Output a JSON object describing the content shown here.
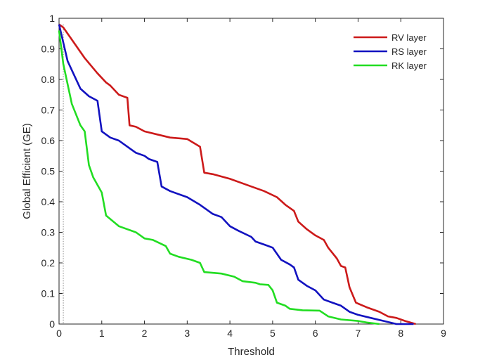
{
  "chart_data": {
    "type": "line",
    "title": "",
    "xlabel": "Threshold",
    "ylabel": "Global Efficient (GE)",
    "xlim": [
      0,
      9
    ],
    "ylim": [
      0,
      1
    ],
    "xticks": [
      "0",
      "1",
      "2",
      "3",
      "4",
      "5",
      "6",
      "7",
      "8",
      "9"
    ],
    "yticks": [
      "0",
      "0.1",
      "0.2",
      "0.3",
      "0.4",
      "0.5",
      "0.6",
      "0.7",
      "0.8",
      "0.9",
      "1"
    ],
    "grid": false,
    "legend_position": "top-right",
    "reference_line_x": 0.1,
    "series": [
      {
        "name": "RV layer",
        "color": "#cc1a1a",
        "x": [
          0,
          0.1,
          0.3,
          0.6,
          0.9,
          1.1,
          1.2,
          1.4,
          1.6,
          1.65,
          1.8,
          2.0,
          2.3,
          2.6,
          3.0,
          3.3,
          3.4,
          3.6,
          4.0,
          4.5,
          4.8,
          5.1,
          5.3,
          5.5,
          5.6,
          5.8,
          6.0,
          6.2,
          6.3,
          6.5,
          6.6,
          6.7,
          6.8,
          6.95,
          7.2,
          7.5,
          7.7,
          7.9,
          8.1,
          8.35
        ],
        "y": [
          0.98,
          0.97,
          0.93,
          0.87,
          0.82,
          0.79,
          0.78,
          0.75,
          0.74,
          0.65,
          0.645,
          0.63,
          0.62,
          0.61,
          0.605,
          0.58,
          0.495,
          0.49,
          0.475,
          0.45,
          0.435,
          0.415,
          0.39,
          0.37,
          0.335,
          0.31,
          0.29,
          0.275,
          0.25,
          0.215,
          0.19,
          0.185,
          0.12,
          0.07,
          0.055,
          0.04,
          0.025,
          0.02,
          0.01,
          0.0
        ]
      },
      {
        "name": "RS layer",
        "color": "#1212c0",
        "x": [
          0,
          0.2,
          0.5,
          0.7,
          0.9,
          1.0,
          1.2,
          1.4,
          1.6,
          1.8,
          2.0,
          2.1,
          2.3,
          2.4,
          2.6,
          3.0,
          3.3,
          3.6,
          3.8,
          4.0,
          4.2,
          4.5,
          4.6,
          4.8,
          5.0,
          5.2,
          5.4,
          5.5,
          5.6,
          5.8,
          6.0,
          6.2,
          6.4,
          6.6,
          6.8,
          7.0,
          7.3,
          7.6,
          7.9,
          8.3
        ],
        "y": [
          0.98,
          0.86,
          0.77,
          0.745,
          0.73,
          0.63,
          0.61,
          0.6,
          0.58,
          0.56,
          0.55,
          0.54,
          0.53,
          0.45,
          0.435,
          0.415,
          0.39,
          0.36,
          0.35,
          0.32,
          0.305,
          0.285,
          0.27,
          0.26,
          0.25,
          0.21,
          0.195,
          0.185,
          0.145,
          0.125,
          0.11,
          0.08,
          0.07,
          0.06,
          0.04,
          0.03,
          0.02,
          0.01,
          0.0,
          0.0
        ]
      },
      {
        "name": "RK layer",
        "color": "#22dd22",
        "x": [
          0,
          0.1,
          0.3,
          0.5,
          0.6,
          0.7,
          0.8,
          1.0,
          1.1,
          1.4,
          1.8,
          2.0,
          2.2,
          2.5,
          2.6,
          2.8,
          3.1,
          3.3,
          3.4,
          3.8,
          4.1,
          4.3,
          4.6,
          4.7,
          4.9,
          5.0,
          5.1,
          5.3,
          5.4,
          5.7,
          6.1,
          6.3,
          6.6,
          7.0,
          7.2,
          7.5
        ],
        "y": [
          0.96,
          0.85,
          0.72,
          0.65,
          0.63,
          0.52,
          0.48,
          0.43,
          0.355,
          0.32,
          0.3,
          0.28,
          0.275,
          0.255,
          0.23,
          0.22,
          0.21,
          0.2,
          0.17,
          0.165,
          0.155,
          0.14,
          0.135,
          0.13,
          0.128,
          0.11,
          0.07,
          0.06,
          0.05,
          0.045,
          0.044,
          0.025,
          0.015,
          0.01,
          0.005,
          0.0
        ]
      }
    ]
  }
}
